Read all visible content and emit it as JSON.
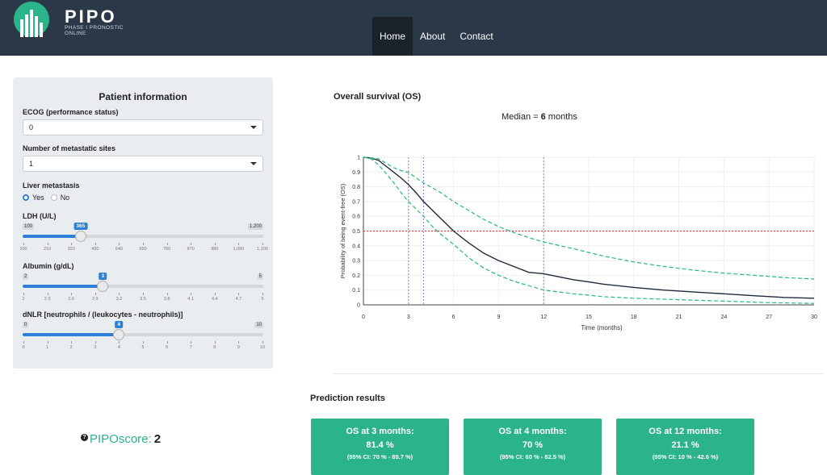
{
  "app": {
    "logo_text": "PIPO",
    "logo_subtitle": "PHASE I PRONOSTIC ONLINE",
    "colors": {
      "nav_bg": "#2b3848",
      "accent": "#2bb38a",
      "slider": "#2e7fd6"
    }
  },
  "nav": {
    "items": [
      {
        "label": "Home",
        "active": true
      },
      {
        "label": "About",
        "active": false
      },
      {
        "label": "Contact",
        "active": false
      }
    ]
  },
  "patient": {
    "title": "Patient information",
    "ecog": {
      "label": "ECOG (performance status)",
      "value": "0"
    },
    "metastatic_sites": {
      "label": "Number of metastatic sites",
      "value": "1"
    },
    "liver": {
      "label": "Liver metastasis",
      "options": [
        "Yes",
        "No"
      ],
      "selected": "Yes"
    },
    "ldh": {
      "label": "LDH (U/L)",
      "min": 100,
      "max": 1200,
      "value": 365,
      "min_label": "100",
      "max_label": "1,200",
      "value_label": "365",
      "ticks": [
        "100",
        "210",
        "320",
        "430",
        "540",
        "650",
        "760",
        "870",
        "980",
        "1,090",
        "1,200"
      ]
    },
    "albumin": {
      "label": "Albumin (g/dL)",
      "min": 2,
      "max": 5,
      "value": 3,
      "min_label": "2",
      "max_label": "5",
      "value_label": "3",
      "ticks": [
        "2",
        "2.3",
        "2.6",
        "2.9",
        "3.2",
        "3.5",
        "3.8",
        "4.1",
        "4.4",
        "4.7",
        "5"
      ]
    },
    "dnlr": {
      "label": "dNLR [neutrophils / (leukocytes - neutrophils)]",
      "min": 0,
      "max": 10,
      "value": 4,
      "min_label": "0",
      "max_label": "10",
      "value_label": "4",
      "ticks": [
        "0",
        "1",
        "2",
        "3",
        "4",
        "5",
        "6",
        "7",
        "8",
        "9",
        "10"
      ]
    }
  },
  "survival": {
    "title": "Overall survival (OS)",
    "median_prefix": "Median = ",
    "median_value": "6",
    "median_suffix": " months"
  },
  "chart_data": {
    "type": "line",
    "xlabel": "Time (months)",
    "ylabel": "Probability of being event-free (OS)",
    "xlim": [
      0,
      30
    ],
    "ylim": [
      0,
      1
    ],
    "xticks": [
      0,
      3,
      6,
      9,
      12,
      15,
      18,
      21,
      24,
      27,
      30
    ],
    "yticks": [
      0,
      0.1,
      0.2,
      0.3,
      0.4,
      0.5,
      0.6,
      0.7,
      0.8,
      0.9,
      1
    ],
    "ytick_labels": [
      "0",
      "0.1",
      "0.2",
      "0.3",
      "0.4",
      "0.5",
      "0.6",
      "0.7",
      "0.8",
      "0.9",
      "1"
    ],
    "grid": true,
    "reference_line_y": 0.5,
    "vertical_lines_x": [
      3,
      4,
      12
    ],
    "series": [
      {
        "style": "solid",
        "color": "#1f2a3a",
        "points": [
          [
            0,
            1
          ],
          [
            0.5,
            0.995
          ],
          [
            1,
            0.98
          ],
          [
            1.5,
            0.94
          ],
          [
            2,
            0.9
          ],
          [
            2.5,
            0.86
          ],
          [
            3,
            0.814
          ],
          [
            3.5,
            0.76
          ],
          [
            4,
            0.7
          ],
          [
            4.5,
            0.65
          ],
          [
            5,
            0.6
          ],
          [
            5.5,
            0.55
          ],
          [
            6,
            0.5
          ],
          [
            7,
            0.42
          ],
          [
            8,
            0.35
          ],
          [
            9,
            0.3
          ],
          [
            10,
            0.26
          ],
          [
            11,
            0.22
          ],
          [
            12,
            0.211
          ],
          [
            13,
            0.19
          ],
          [
            14,
            0.17
          ],
          [
            15,
            0.155
          ],
          [
            16,
            0.14
          ],
          [
            18,
            0.118
          ],
          [
            20,
            0.1
          ],
          [
            22,
            0.087
          ],
          [
            24,
            0.075
          ],
          [
            26,
            0.062
          ],
          [
            28,
            0.05
          ],
          [
            30,
            0.045
          ]
        ]
      },
      {
        "style": "dashed",
        "color": "#2bb38a",
        "points": [
          [
            0,
            1
          ],
          [
            0.5,
            0.995
          ],
          [
            1,
            0.99
          ],
          [
            1.5,
            0.96
          ],
          [
            2,
            0.93
          ],
          [
            2.5,
            0.91
          ],
          [
            3,
            0.897
          ],
          [
            4,
            0.825
          ],
          [
            5,
            0.77
          ],
          [
            6,
            0.7
          ],
          [
            7,
            0.64
          ],
          [
            8,
            0.58
          ],
          [
            9,
            0.53
          ],
          [
            10,
            0.49
          ],
          [
            11,
            0.455
          ],
          [
            12,
            0.426
          ],
          [
            14,
            0.38
          ],
          [
            16,
            0.33
          ],
          [
            18,
            0.29
          ],
          [
            20,
            0.26
          ],
          [
            22,
            0.235
          ],
          [
            24,
            0.215
          ],
          [
            26,
            0.2
          ],
          [
            28,
            0.185
          ],
          [
            30,
            0.175
          ]
        ]
      },
      {
        "style": "dashed",
        "color": "#2bb38a",
        "points": [
          [
            0,
            1
          ],
          [
            0.5,
            0.99
          ],
          [
            1,
            0.95
          ],
          [
            1.5,
            0.89
          ],
          [
            2,
            0.83
          ],
          [
            2.5,
            0.76
          ],
          [
            3,
            0.7
          ],
          [
            3.5,
            0.65
          ],
          [
            4,
            0.6
          ],
          [
            4.5,
            0.54
          ],
          [
            5,
            0.49
          ],
          [
            5.5,
            0.45
          ],
          [
            6,
            0.41
          ],
          [
            7,
            0.32
          ],
          [
            8,
            0.25
          ],
          [
            9,
            0.2
          ],
          [
            10,
            0.16
          ],
          [
            11,
            0.13
          ],
          [
            12,
            0.1
          ],
          [
            14,
            0.075
          ],
          [
            16,
            0.055
          ],
          [
            18,
            0.045
          ],
          [
            21,
            0.035
          ],
          [
            24,
            0.025
          ],
          [
            27,
            0.015
          ],
          [
            30,
            0.01
          ]
        ]
      }
    ]
  },
  "prediction": {
    "title": "Prediction results",
    "cards": [
      {
        "head": "OS at 3 months:",
        "value": "81.4 %",
        "ci": "(95% CI: 70 % - 89.7 %)"
      },
      {
        "head": "OS at 4 months:",
        "value": "70 %",
        "ci": "(95% CI: 60 % - 82.5 %)"
      },
      {
        "head": "OS at 12 months:",
        "value": "21.1 %",
        "ci": "(95% CI: 10 % - 42.6 %)"
      }
    ]
  },
  "pipo_score": {
    "label": "PIPOscore:",
    "value": "2",
    "help_icon": "question-circle-icon",
    "help_glyph": "?"
  }
}
